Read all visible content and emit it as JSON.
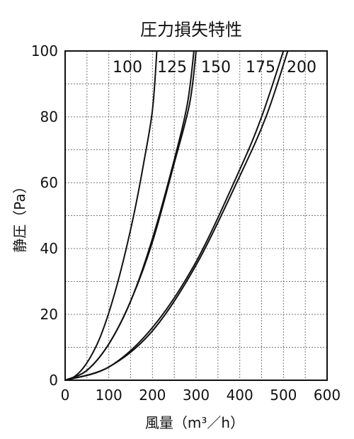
{
  "chart_data": {
    "type": "line",
    "title": "圧力損失特性",
    "xlabel": "風量（m³／h）",
    "ylabel": "静圧（Pa）",
    "xlim": [
      0,
      600
    ],
    "ylim": [
      0,
      100
    ],
    "x_ticks": [
      "0",
      "100",
      "200",
      "300",
      "400",
      "500",
      "600"
    ],
    "y_ticks": [
      "0",
      "20",
      "40",
      "60",
      "80",
      "100"
    ],
    "grid": true,
    "series": [
      {
        "name": "100",
        "x": [
          0,
          20,
          40,
          60,
          80,
          100,
          120,
          140,
          160,
          180,
          200,
          210
        ],
        "y": [
          0,
          1,
          3.5,
          7.5,
          13,
          20.5,
          29.5,
          40,
          52,
          66,
          82,
          100
        ]
      },
      {
        "name": "125",
        "x": [
          0,
          50,
          100,
          150,
          200,
          250,
          280,
          295
        ],
        "y": [
          0,
          3,
          11,
          24,
          43,
          67,
          84,
          100
        ]
      },
      {
        "name": "150",
        "x": [
          0,
          50,
          100,
          150,
          200,
          250,
          285,
          300
        ],
        "y": [
          0,
          3,
          11,
          24,
          42,
          66,
          84,
          100
        ]
      },
      {
        "name": "175",
        "x": [
          0,
          100,
          200,
          300,
          400,
          450,
          500
        ],
        "y": [
          0,
          4,
          16,
          36,
          64,
          80,
          100
        ]
      },
      {
        "name": "200",
        "x": [
          0,
          100,
          200,
          300,
          400,
          460,
          510
        ],
        "y": [
          0,
          4,
          15,
          35,
          62,
          80,
          100
        ]
      }
    ]
  }
}
